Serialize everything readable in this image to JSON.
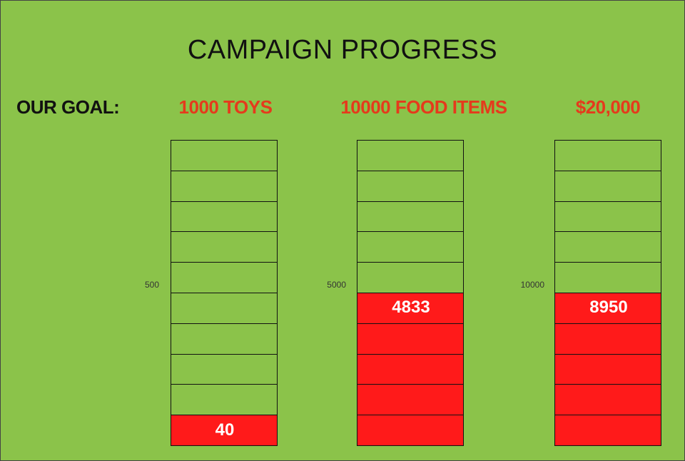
{
  "title": "CAMPAIGN PROGRESS",
  "goal_label": "OUR GOAL:",
  "colors": {
    "background": "#8bc34a",
    "fill": "#ff1a1a",
    "goal_text": "#e53a1c"
  },
  "chart_data": {
    "type": "bar",
    "title": "CAMPAIGN PROGRESS",
    "segments_per_bar": 10,
    "bars": [
      {
        "goal_label": "1000 TOYS",
        "goal": 1000,
        "midpoint_label": "500",
        "value": 40,
        "value_label": "40",
        "filled_segments": 1
      },
      {
        "goal_label": "10000 FOOD ITEMS",
        "goal": 10000,
        "midpoint_label": "5000",
        "value": 4833,
        "value_label": "4833",
        "filled_segments": 5
      },
      {
        "goal_label": "$20,000",
        "goal": 20000,
        "midpoint_label": "10000",
        "value": 8950,
        "value_label": "8950",
        "filled_segments": 5
      }
    ]
  }
}
